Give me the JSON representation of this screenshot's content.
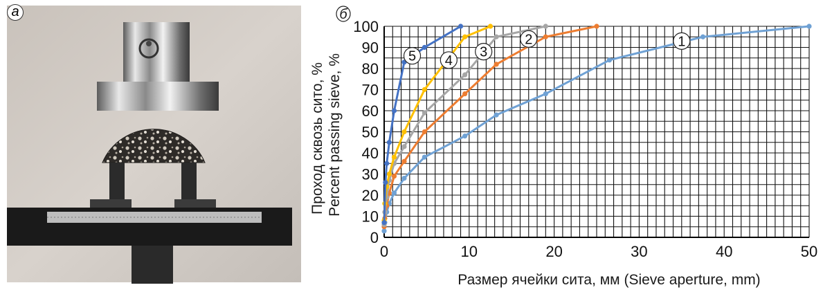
{
  "panels": {
    "left_label": "а",
    "right_label": "б"
  },
  "chart_data": {
    "type": "line",
    "xlabel": "Размер ячейки сита, мм (Sieve aperture, mm)",
    "ylabel_ru": "Проход сквозь сито, %",
    "ylabel_en": "Percent passing sieve, %",
    "xlim": [
      0,
      50
    ],
    "ylim": [
      0,
      100
    ],
    "x_ticks": [
      0,
      10,
      20,
      30,
      40,
      50
    ],
    "y_ticks": [
      0,
      10,
      20,
      30,
      40,
      50,
      60,
      70,
      80,
      90,
      100
    ],
    "grid": true,
    "series": [
      {
        "name": "1",
        "color": "#6fa1d4",
        "x": [
          0,
          0.075,
          0.3,
          0.6,
          1.18,
          2.36,
          4.75,
          9.5,
          13.2,
          19,
          26.5,
          37.5,
          50
        ],
        "y": [
          3,
          7,
          12,
          16,
          21,
          28,
          38,
          48,
          58,
          68,
          84,
          95,
          100
        ]
      },
      {
        "name": "2",
        "color": "#ed7d31",
        "x": [
          0,
          0.075,
          0.3,
          0.6,
          1.18,
          2.36,
          4.75,
          9.5,
          13.2,
          19,
          25
        ],
        "y": [
          5,
          9,
          15,
          21,
          29,
          36,
          50,
          68,
          82,
          95,
          100
        ]
      },
      {
        "name": "3",
        "color": "#a6a6a6",
        "x": [
          0,
          0.075,
          0.3,
          0.6,
          1.18,
          2.36,
          4.75,
          9.5,
          13.2,
          19
        ],
        "y": [
          6,
          12,
          19,
          27,
          35,
          43,
          59,
          77,
          95,
          100
        ]
      },
      {
        "name": "4",
        "color": "#ffc000",
        "x": [
          0,
          0.075,
          0.3,
          0.6,
          1.18,
          2.36,
          4.75,
          9.5,
          12.5
        ],
        "y": [
          8,
          16,
          24,
          30,
          38,
          50,
          70,
          95,
          100
        ]
      },
      {
        "name": "5",
        "color": "#4472c4",
        "x": [
          0,
          0.15,
          0.3,
          0.6,
          1.18,
          2.36,
          4.75,
          9.0
        ],
        "y": [
          7,
          26,
          35,
          45,
          60,
          83,
          90,
          100
        ]
      }
    ]
  }
}
